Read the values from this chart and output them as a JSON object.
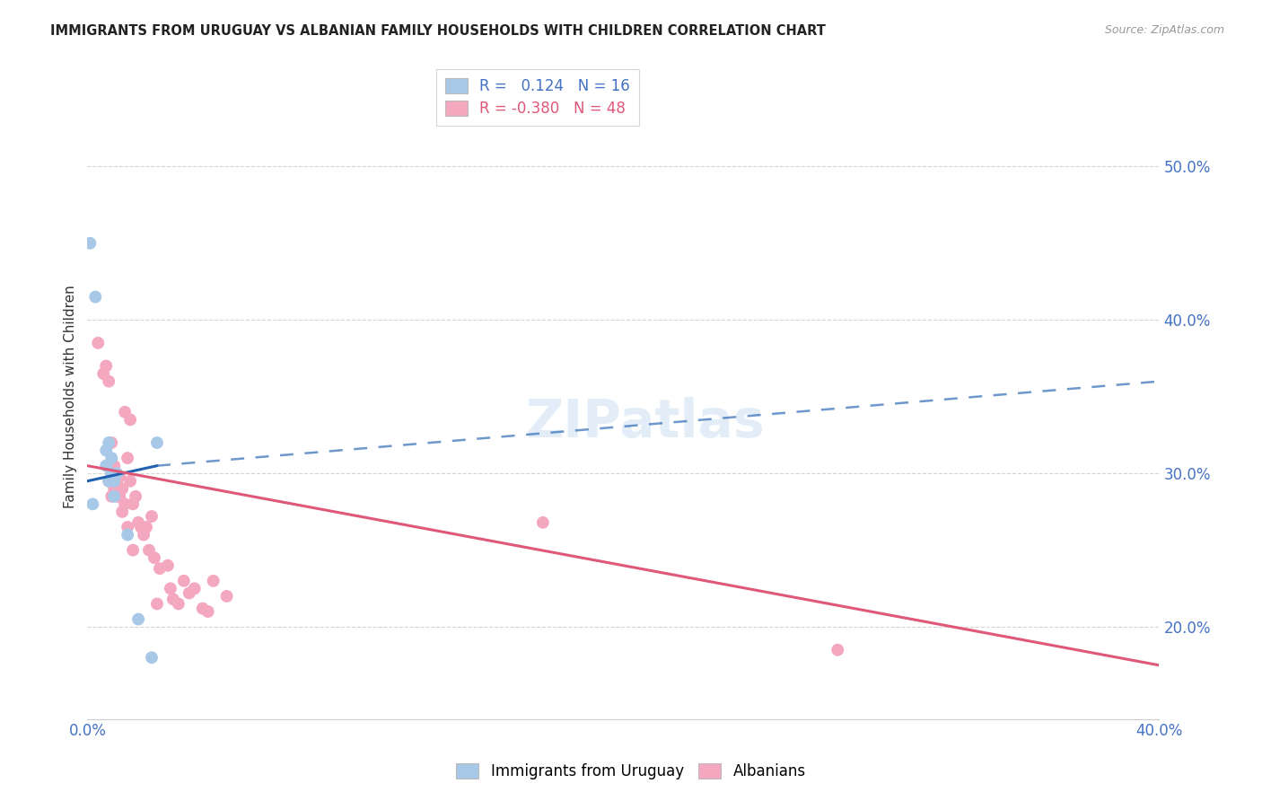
{
  "title": "IMMIGRANTS FROM URUGUAY VS ALBANIAN FAMILY HOUSEHOLDS WITH CHILDREN CORRELATION CHART",
  "source": "Source: ZipAtlas.com",
  "ylabel": "Family Households with Children",
  "xlim": [
    0.0,
    0.4
  ],
  "ylim": [
    0.14,
    0.56
  ],
  "xticks": [
    0.0,
    0.05,
    0.1,
    0.15,
    0.2,
    0.25,
    0.3,
    0.35,
    0.4
  ],
  "yticks": [
    0.2,
    0.3,
    0.4,
    0.5
  ],
  "ytick_labels": [
    "20.0%",
    "30.0%",
    "40.0%",
    "50.0%"
  ],
  "r_uruguay": 0.124,
  "n_uruguay": 16,
  "r_albanian": -0.38,
  "n_albanian": 48,
  "uruguay_color": "#a8c8e8",
  "albanian_color": "#f4a8c0",
  "uruguay_line_color": "#2060b0",
  "albanian_line_color": "#e05878",
  "uruguay_line_solid": [
    [
      0.0,
      0.295
    ],
    [
      0.026,
      0.305
    ]
  ],
  "uruguay_line_dashed": [
    [
      0.026,
      0.305
    ],
    [
      0.4,
      0.36
    ]
  ],
  "albanian_line": [
    [
      0.0,
      0.305
    ],
    [
      0.4,
      0.175
    ]
  ],
  "uruguay_scatter": [
    [
      0.001,
      0.45
    ],
    [
      0.003,
      0.415
    ],
    [
      0.007,
      0.315
    ],
    [
      0.007,
      0.305
    ],
    [
      0.008,
      0.32
    ],
    [
      0.008,
      0.295
    ],
    [
      0.009,
      0.3
    ],
    [
      0.009,
      0.31
    ],
    [
      0.01,
      0.295
    ],
    [
      0.01,
      0.285
    ],
    [
      0.011,
      0.3
    ],
    [
      0.015,
      0.26
    ],
    [
      0.019,
      0.205
    ],
    [
      0.024,
      0.18
    ],
    [
      0.026,
      0.32
    ],
    [
      0.002,
      0.28
    ]
  ],
  "albanian_scatter": [
    [
      0.004,
      0.385
    ],
    [
      0.006,
      0.365
    ],
    [
      0.007,
      0.37
    ],
    [
      0.008,
      0.36
    ],
    [
      0.008,
      0.295
    ],
    [
      0.009,
      0.3
    ],
    [
      0.009,
      0.32
    ],
    [
      0.009,
      0.285
    ],
    [
      0.01,
      0.29
    ],
    [
      0.01,
      0.295
    ],
    [
      0.01,
      0.305
    ],
    [
      0.011,
      0.285
    ],
    [
      0.011,
      0.295
    ],
    [
      0.012,
      0.285
    ],
    [
      0.012,
      0.298
    ],
    [
      0.013,
      0.29
    ],
    [
      0.013,
      0.275
    ],
    [
      0.014,
      0.28
    ],
    [
      0.014,
      0.34
    ],
    [
      0.015,
      0.31
    ],
    [
      0.015,
      0.265
    ],
    [
      0.016,
      0.335
    ],
    [
      0.016,
      0.295
    ],
    [
      0.017,
      0.28
    ],
    [
      0.017,
      0.25
    ],
    [
      0.018,
      0.285
    ],
    [
      0.019,
      0.268
    ],
    [
      0.02,
      0.265
    ],
    [
      0.021,
      0.26
    ],
    [
      0.022,
      0.265
    ],
    [
      0.023,
      0.25
    ],
    [
      0.024,
      0.272
    ],
    [
      0.025,
      0.245
    ],
    [
      0.027,
      0.238
    ],
    [
      0.03,
      0.24
    ],
    [
      0.031,
      0.225
    ],
    [
      0.032,
      0.218
    ],
    [
      0.034,
      0.215
    ],
    [
      0.036,
      0.23
    ],
    [
      0.038,
      0.222
    ],
    [
      0.04,
      0.225
    ],
    [
      0.043,
      0.212
    ],
    [
      0.045,
      0.21
    ],
    [
      0.047,
      0.23
    ],
    [
      0.052,
      0.22
    ],
    [
      0.17,
      0.268
    ],
    [
      0.28,
      0.185
    ],
    [
      0.026,
      0.215
    ]
  ],
  "watermark": "ZIPatlas",
  "background_color": "#ffffff",
  "grid_color": "#d0d0d0"
}
